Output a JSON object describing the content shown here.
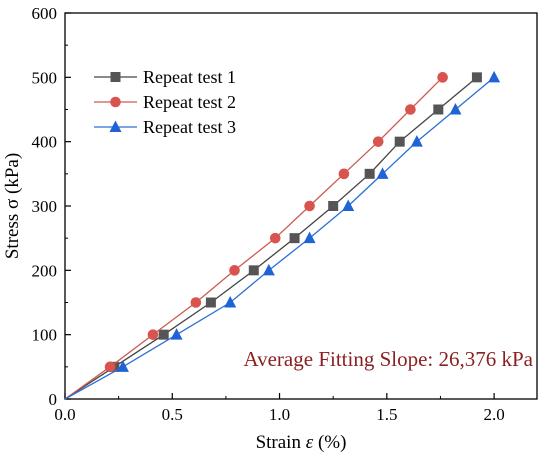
{
  "chart_data": {
    "type": "line",
    "xlabel_prefix": "Strain ",
    "xlabel_symbol": "ε",
    "xlabel_suffix": " (%)",
    "ylabel": "Stress σ (kPa)",
    "xlim": [
      0,
      2.2
    ],
    "ylim": [
      0,
      600
    ],
    "x_ticks": [
      "0.0",
      "0.5",
      "1.0",
      "1.5",
      "2.0"
    ],
    "y_ticks": [
      "0",
      "100",
      "200",
      "300",
      "400",
      "500",
      "600"
    ],
    "grid": false,
    "legend_position": "top-left",
    "annotation": "Average Fitting Slope: 26,376 kPa",
    "series": [
      {
        "name": "Repeat test 1",
        "marker": "square",
        "color": "#444444",
        "fill": "#555555",
        "x": [
          0,
          0.23,
          0.46,
          0.68,
          0.88,
          1.07,
          1.25,
          1.42,
          1.56,
          1.74,
          1.92
        ],
        "y": [
          0,
          50,
          100,
          150,
          200,
          250,
          300,
          350,
          400,
          450,
          500
        ]
      },
      {
        "name": "Repeat test 2",
        "marker": "circle",
        "color": "#cc5a50",
        "fill": "#d9534f",
        "x": [
          0,
          0.21,
          0.41,
          0.61,
          0.79,
          0.98,
          1.14,
          1.3,
          1.46,
          1.61,
          1.76
        ],
        "y": [
          0,
          50,
          100,
          150,
          200,
          250,
          300,
          350,
          400,
          450,
          500
        ]
      },
      {
        "name": "Repeat test 3",
        "marker": "triangle",
        "color": "#2b6fd6",
        "fill": "#1f63d6",
        "x": [
          0,
          0.27,
          0.52,
          0.77,
          0.95,
          1.14,
          1.32,
          1.48,
          1.64,
          1.82,
          2.0
        ],
        "y": [
          0,
          50,
          100,
          150,
          200,
          250,
          300,
          350,
          400,
          450,
          500
        ]
      }
    ]
  }
}
